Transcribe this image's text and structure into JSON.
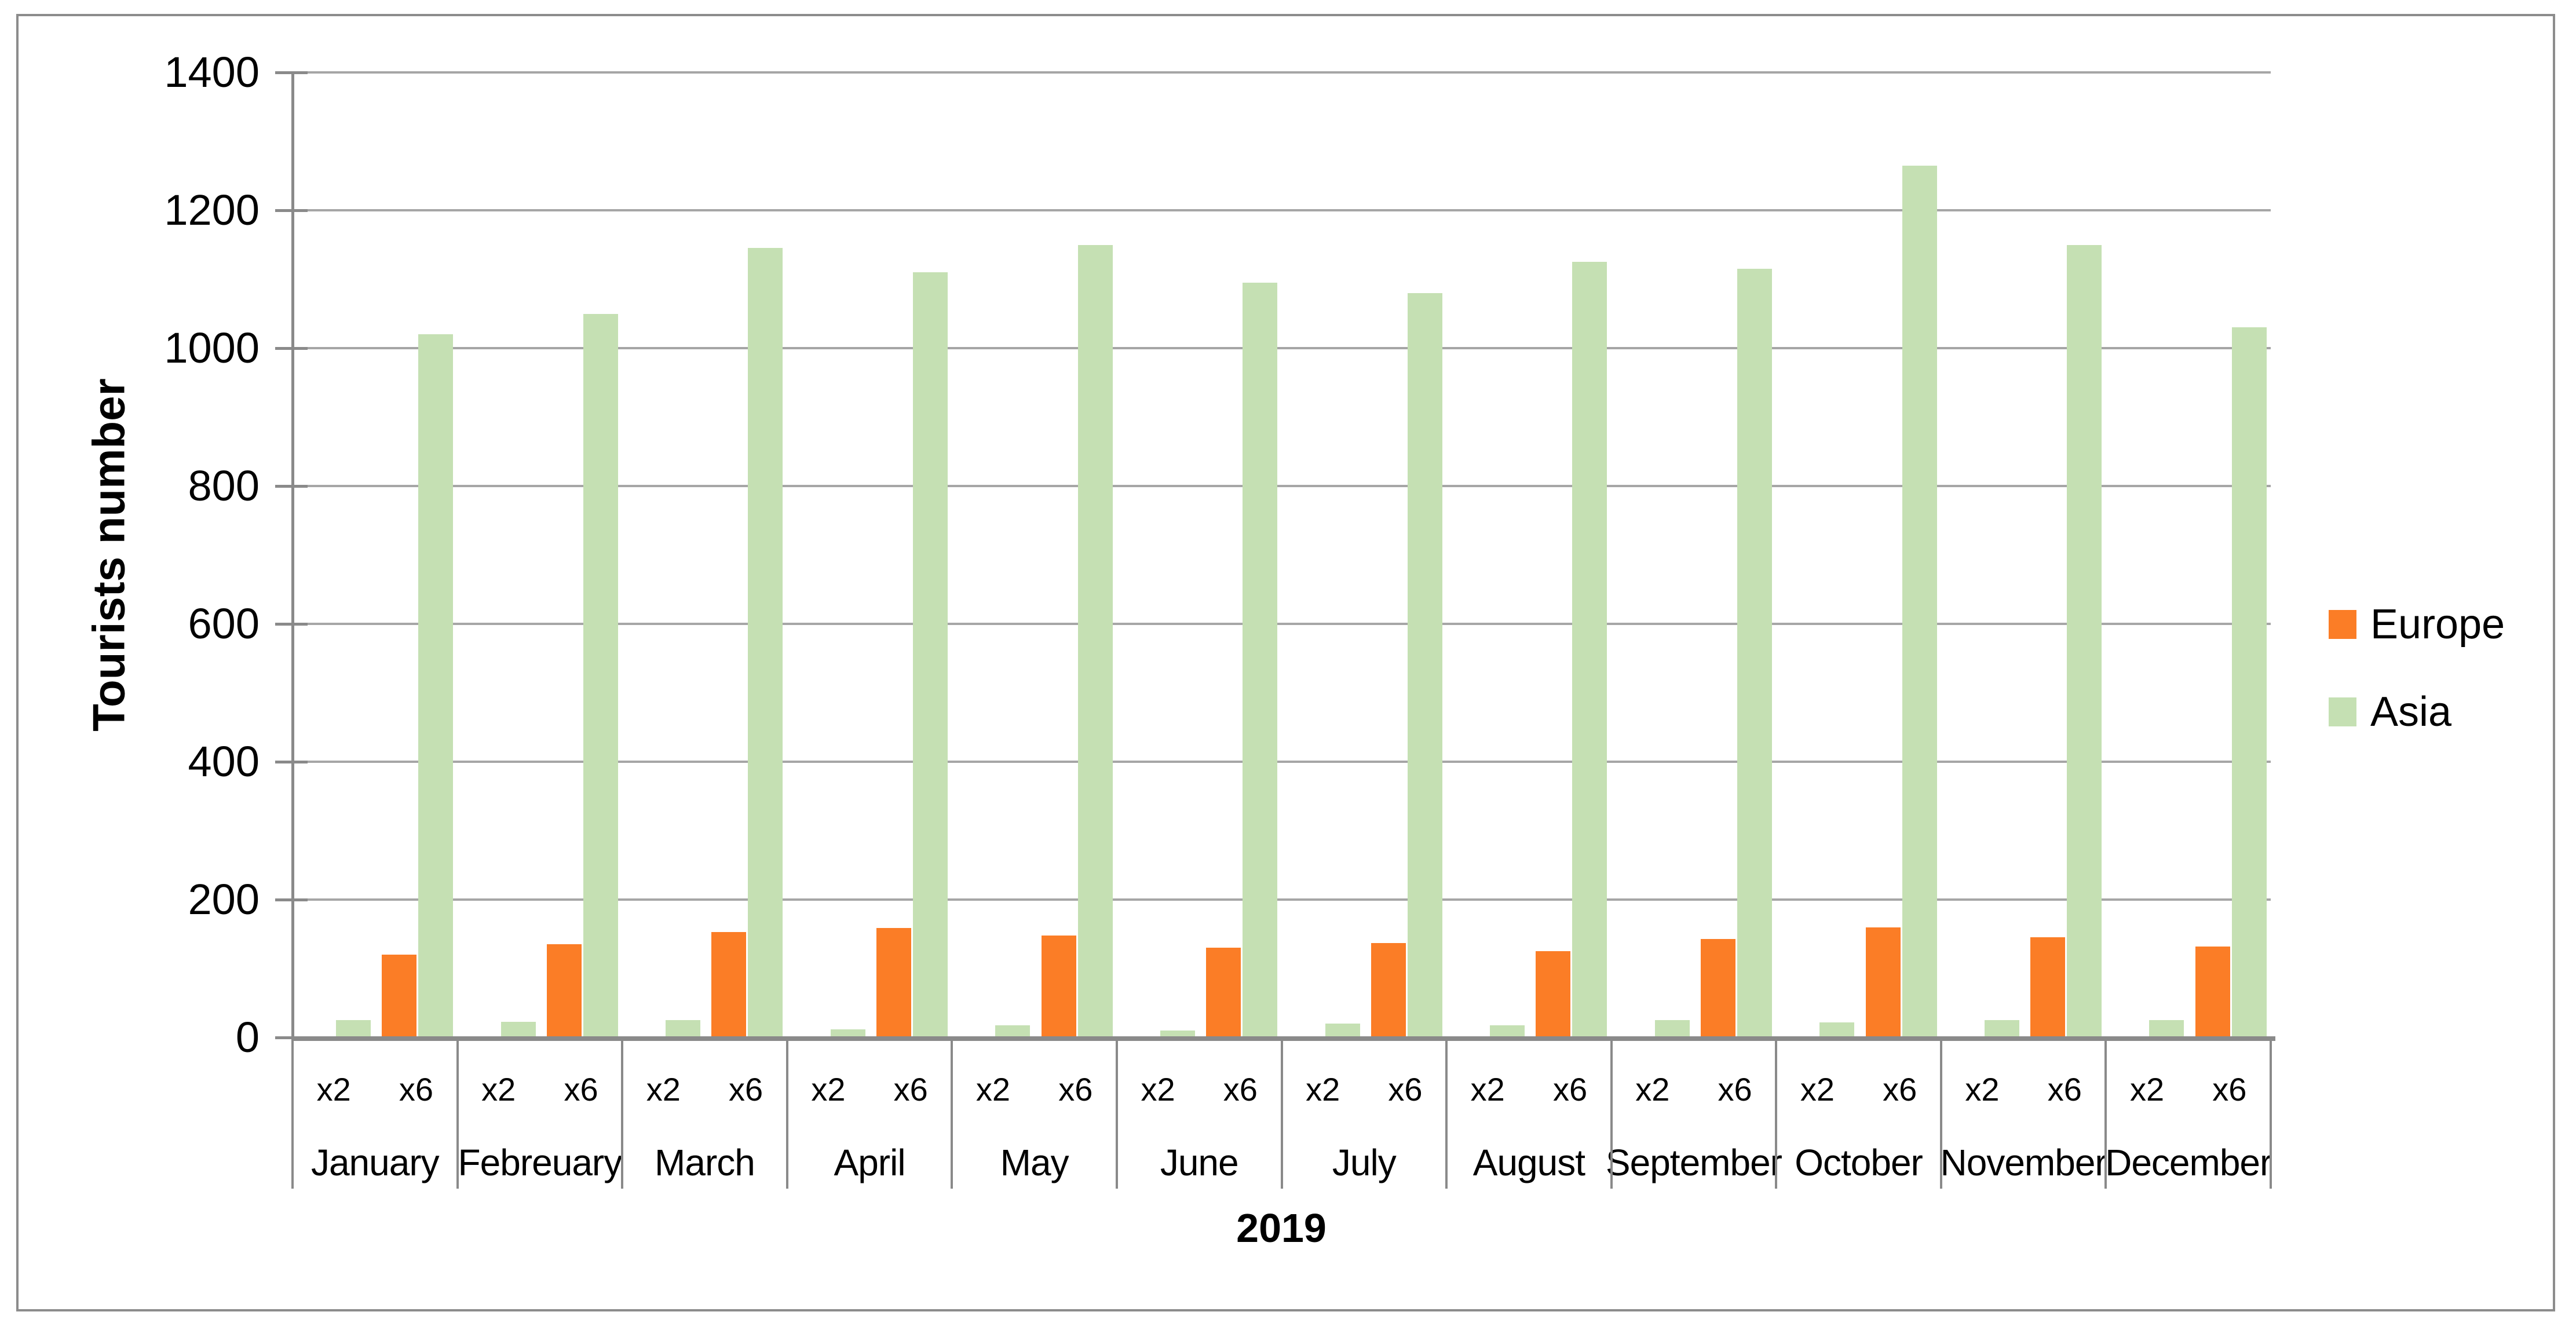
{
  "chart_data": {
    "type": "bar",
    "title": "",
    "xlabel": "2019",
    "ylabel": "Tourists number",
    "ylim": [
      0,
      1400
    ],
    "ytick_step": 200,
    "y_ticks": [
      1400,
      1200,
      1000,
      800,
      600,
      400,
      200,
      0
    ],
    "grid": true,
    "legend_position": "right-middle",
    "categories": [
      "January",
      "Febreuary",
      "March",
      "April",
      "May",
      "June",
      "July",
      "August",
      "September",
      "October",
      "November",
      "December"
    ],
    "subcategories": [
      "x2",
      "x6"
    ],
    "series": [
      {
        "name": "Europe",
        "color": "#FB7D26",
        "values": {
          "x2": [
            0,
            0,
            0,
            0,
            0,
            0,
            0,
            0,
            0,
            0,
            0,
            0
          ],
          "x6": [
            120,
            135,
            153,
            159,
            148,
            130,
            137,
            125,
            143,
            160,
            145,
            132
          ]
        }
      },
      {
        "name": "Asia",
        "color": "#C5E0B3",
        "values": {
          "x2": [
            25,
            23,
            25,
            12,
            18,
            10,
            20,
            18,
            25,
            22,
            25,
            25
          ],
          "x6": [
            1020,
            1050,
            1145,
            1110,
            1150,
            1095,
            1080,
            1125,
            1115,
            1265,
            1150,
            1030
          ]
        }
      }
    ]
  },
  "axes": {
    "y_title": "Tourists number",
    "x_title": "2019"
  },
  "legend": {
    "items": [
      {
        "label": "Europe",
        "color": "#FB7D26"
      },
      {
        "label": "Asia",
        "color": "#C5E0B3"
      }
    ]
  },
  "colors": {
    "background": "#FFFFFF",
    "gridline": "#A6A6A6",
    "axis": "#8A8A8A",
    "frame_border": "#8C8C8C",
    "text": "#000000"
  }
}
